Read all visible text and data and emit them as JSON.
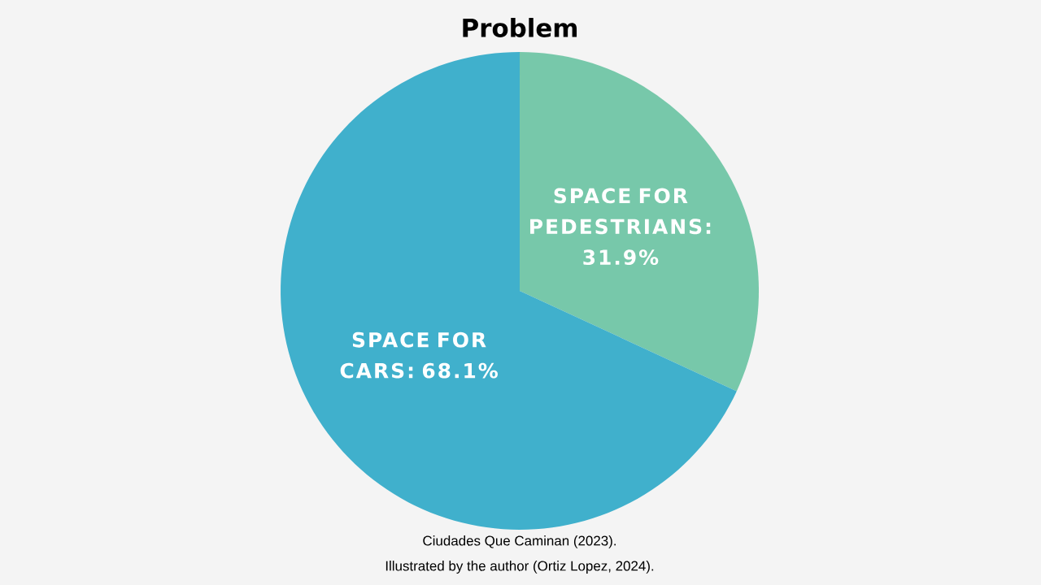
{
  "chart_data": {
    "type": "pie",
    "title": "Problem",
    "categories": [
      null,
      null
    ],
    "values": [
      31.9,
      68.1
    ],
    "value_labels": [
      "SPACE FOR PEDESTRIANS: 31.9%",
      "SPACE FOR CARS: 68.1%"
    ],
    "colors": [
      "#77c8aa",
      "#40b0cc"
    ],
    "annotations": [
      "Ciudades Que Caminan (2023).",
      "Illustrated by the author (Ortiz Lopez, 2024)."
    ]
  }
}
